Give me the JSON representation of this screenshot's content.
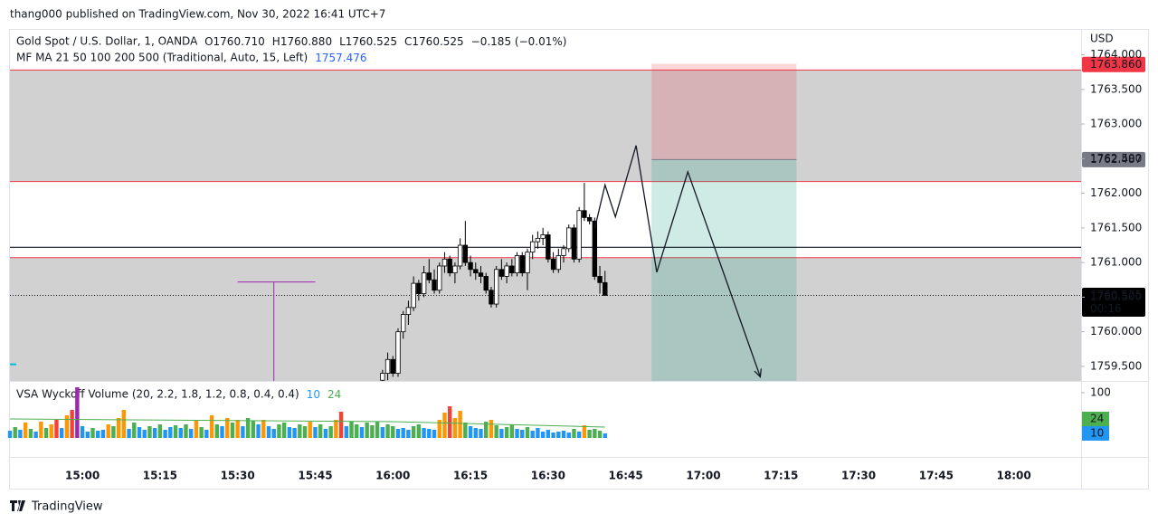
{
  "published": "thang000 published on TradingView.com, Nov 30, 2022 16:41 UTC+7",
  "brand": "TradingView",
  "chart_data": [
    {
      "type": "candlestick",
      "symbol": "Gold Spot / U.S. Dollar, 1, OANDA",
      "ohlc": [
        "O1760.710",
        "H1760.880",
        "L1760.525",
        "C1760.525"
      ],
      "change": "−0.185 (−0.01%)",
      "indicator": "MF MA 21 50 100 200 500 (Traditional, Auto, 15, Left)",
      "indicator_value": "1757.476",
      "indicator_color": "#2962ff",
      "currency": "USD",
      "x": [
        "15:58",
        "15:59",
        "16:00",
        "16:01",
        "16:02",
        "16:03",
        "16:04",
        "16:05",
        "16:06",
        "16:07",
        "16:08",
        "16:09",
        "16:10",
        "16:11",
        "16:12",
        "16:13",
        "16:14",
        "16:15",
        "16:16",
        "16:17",
        "16:18",
        "16:19",
        "16:20",
        "16:21",
        "16:22",
        "16:23",
        "16:24",
        "16:25",
        "16:26",
        "16:27",
        "16:28",
        "16:29",
        "16:30",
        "16:31",
        "16:32",
        "16:33",
        "16:34",
        "16:35",
        "16:36",
        "16:37",
        "16:38",
        "16:39",
        "16:40",
        "16:41"
      ],
      "open": [
        1759.3,
        1759.4,
        1759.6,
        1759.4,
        1760.0,
        1760.25,
        1760.35,
        1760.7,
        1760.55,
        1760.85,
        1760.75,
        1760.6,
        1760.95,
        1761.05,
        1760.85,
        1760.95,
        1761.25,
        1761.0,
        1760.9,
        1760.85,
        1760.8,
        1760.6,
        1760.4,
        1760.9,
        1760.8,
        1760.95,
        1760.85,
        1761.1,
        1760.85,
        1761.15,
        1761.3,
        1761.35,
        1761.4,
        1761.05,
        1760.9,
        1761.1,
        1761.2,
        1761.5,
        1761.05,
        1761.75,
        1761.65,
        1761.6,
        1760.8,
        1760.71
      ],
      "high": [
        1759.45,
        1759.7,
        1759.65,
        1760.05,
        1760.3,
        1760.45,
        1760.8,
        1760.75,
        1760.95,
        1761.05,
        1760.9,
        1761.0,
        1761.15,
        1761.1,
        1761.0,
        1761.35,
        1761.6,
        1761.1,
        1761.0,
        1760.95,
        1760.85,
        1760.65,
        1760.95,
        1761.05,
        1761.0,
        1761.05,
        1761.15,
        1761.15,
        1761.2,
        1761.4,
        1761.45,
        1761.5,
        1761.45,
        1761.15,
        1761.2,
        1761.25,
        1761.55,
        1761.55,
        1761.8,
        1762.15,
        1761.7,
        1761.65,
        1760.95,
        1760.88
      ],
      "low": [
        1759.25,
        1759.3,
        1759.35,
        1759.35,
        1759.9,
        1760.1,
        1760.3,
        1760.45,
        1760.5,
        1760.7,
        1760.55,
        1760.55,
        1760.85,
        1760.8,
        1760.7,
        1760.9,
        1760.95,
        1760.8,
        1760.75,
        1760.7,
        1760.55,
        1760.35,
        1760.35,
        1760.75,
        1760.7,
        1760.8,
        1760.8,
        1760.8,
        1760.6,
        1761.05,
        1761.2,
        1761.25,
        1761.0,
        1760.85,
        1760.85,
        1761.0,
        1761.15,
        1761.0,
        1761.0,
        1761.6,
        1761.55,
        1760.75,
        1760.55,
        1760.525
      ],
      "close": [
        1759.4,
        1759.6,
        1759.4,
        1760.0,
        1760.25,
        1760.35,
        1760.7,
        1760.55,
        1760.85,
        1760.75,
        1760.6,
        1760.95,
        1761.05,
        1760.85,
        1760.95,
        1761.25,
        1761.0,
        1760.9,
        1760.85,
        1760.8,
        1760.6,
        1760.4,
        1760.9,
        1760.8,
        1760.95,
        1760.85,
        1761.1,
        1760.85,
        1761.15,
        1761.3,
        1761.35,
        1761.4,
        1761.05,
        1760.9,
        1761.1,
        1761.2,
        1761.5,
        1761.05,
        1761.75,
        1761.65,
        1761.6,
        1760.8,
        1760.71,
        1760.525
      ],
      "up_color": "#ffffff",
      "down_color": "#000000",
      "outline_color": "#000000",
      "xlim": [
        "14:46",
        "18:13"
      ],
      "xticks": [
        "15:00",
        "15:15",
        "15:30",
        "15:45",
        "16:00",
        "16:15",
        "16:30",
        "16:45",
        "17:00",
        "17:15",
        "17:30",
        "17:45",
        "18:00"
      ],
      "ylim": [
        1759.29,
        1764.36
      ],
      "yticks": [
        {
          "value": 1759.5,
          "label": "1759.500"
        },
        {
          "value": 1760,
          "label": "1760.000"
        },
        {
          "value": 1760.5,
          "label": "1760.500"
        },
        {
          "value": 1761,
          "label": "1761.000"
        },
        {
          "value": 1761.5,
          "label": "1761.500"
        },
        {
          "value": 1762,
          "label": "1762.000"
        },
        {
          "value": 1762.5,
          "label": "1762.500"
        },
        {
          "value": 1763,
          "label": "1763.000"
        },
        {
          "value": 1763.5,
          "label": "1763.500"
        },
        {
          "value": 1764,
          "label": "1764.000"
        }
      ],
      "zones": [
        {
          "top": 1763.78,
          "bottom": 1762.17
        },
        {
          "top": 1761.07
        }
      ],
      "zone_color": "#d1d1d1",
      "zone_border_color": "#f23645",
      "level": 1761.22,
      "level_color": "#131722",
      "purple_tool": {
        "price": 1760.72,
        "from": "15:30",
        "to": "15:45",
        "stem": "15:37",
        "color": "#9c27b0"
      },
      "marker": {
        "price": 1759.53,
        "color": "#00bcd4"
      },
      "position": {
        "from": "16:50",
        "to": "17:18",
        "stop": 1763.87,
        "entry": 1762.487,
        "stop_color": "#f23645",
        "target_color": "#089981"
      },
      "drawing": {
        "x": [
          "16:39",
          "16:41",
          "16:43",
          "16:47",
          "16:51",
          "16:57",
          "17:11"
        ],
        "y": [
          1761.49,
          1762.12,
          1761.66,
          1762.69,
          1760.86,
          1762.31,
          1759.35
        ],
        "color": "#131722"
      },
      "price_labels": [
        {
          "value": 1763.86,
          "label": "1763.860",
          "color": "#f23645"
        },
        {
          "value": 1762.487,
          "label": "1762.487",
          "color": "#787b86"
        },
        {
          "value": 1760.525,
          "label": "1760.525",
          "color": "#000000",
          "countdown": "00:16"
        }
      ]
    },
    {
      "type": "bar",
      "title": "VSA Wyckoff Volume (20, 2.2, 1.8, 1.2, 0.8, 0.4, 0.4)",
      "legend_values": [
        {
          "value": 10,
          "color": "#2196f3"
        },
        {
          "value": 24,
          "color": "#4caf50"
        }
      ],
      "x": [
        "14:46",
        "14:47",
        "14:48",
        "14:49",
        "14:50",
        "14:51",
        "14:52",
        "14:53",
        "14:54",
        "14:55",
        "14:56",
        "14:57",
        "14:58",
        "14:59",
        "15:00",
        "15:01",
        "15:02",
        "15:03",
        "15:04",
        "15:05",
        "15:06",
        "15:07",
        "15:08",
        "15:09",
        "15:10",
        "15:11",
        "15:12",
        "15:13",
        "15:14",
        "15:15",
        "15:16",
        "15:17",
        "15:18",
        "15:19",
        "15:20",
        "15:21",
        "15:22",
        "15:23",
        "15:24",
        "15:25",
        "15:26",
        "15:27",
        "15:28",
        "15:29",
        "15:30",
        "15:31",
        "15:32",
        "15:33",
        "15:34",
        "15:35",
        "15:36",
        "15:37",
        "15:38",
        "15:39",
        "15:40",
        "15:41",
        "15:42",
        "15:43",
        "15:44",
        "15:45",
        "15:46",
        "15:47",
        "15:48",
        "15:49",
        "15:50",
        "15:51",
        "15:52",
        "15:53",
        "15:54",
        "15:55",
        "15:56",
        "15:57",
        "15:58",
        "15:59",
        "16:00",
        "16:01",
        "16:02",
        "16:03",
        "16:04",
        "16:05",
        "16:06",
        "16:07",
        "16:08",
        "16:09",
        "16:10",
        "16:11",
        "16:12",
        "16:13",
        "16:14",
        "16:15",
        "16:16",
        "16:17",
        "16:18",
        "16:19",
        "16:20",
        "16:21",
        "16:22",
        "16:23",
        "16:24",
        "16:25",
        "16:26",
        "16:27",
        "16:28",
        "16:29",
        "16:30",
        "16:31",
        "16:32",
        "16:33",
        "16:34",
        "16:35",
        "16:36",
        "16:37",
        "16:38",
        "16:39",
        "16:40",
        "16:41"
      ],
      "values": [
        16,
        24,
        18,
        34,
        20,
        14,
        36,
        22,
        30,
        40,
        22,
        50,
        62,
        112,
        26,
        14,
        22,
        16,
        18,
        30,
        26,
        44,
        62,
        20,
        34,
        24,
        18,
        26,
        22,
        30,
        18,
        24,
        28,
        22,
        30,
        20,
        40,
        24,
        18,
        50,
        30,
        26,
        44,
        34,
        40,
        26,
        44,
        38,
        30,
        40,
        26,
        20,
        30,
        34,
        24,
        22,
        30,
        26,
        36,
        24,
        30,
        20,
        26,
        40,
        58,
        26,
        36,
        30,
        24,
        34,
        28,
        36,
        24,
        30,
        26,
        20,
        22,
        18,
        26,
        30,
        22,
        20,
        18,
        40,
        56,
        70,
        44,
        60,
        34,
        26,
        22,
        20,
        36,
        40,
        28,
        20,
        24,
        30,
        20,
        18,
        24,
        16,
        22,
        14,
        18,
        12,
        14,
        16,
        12,
        20,
        14,
        28,
        18,
        20,
        16,
        10
      ],
      "colors": [
        "#2196f3",
        "#4caf50",
        "#2196f3",
        "#ff9800",
        "#4caf50",
        "#2196f3",
        "#ff9800",
        "#4caf50",
        "#ff9800",
        "#f44336",
        "#2196f3",
        "#ff9800",
        "#f44336",
        "#9c27b0",
        "#2196f3",
        "#2196f3",
        "#4caf50",
        "#2196f3",
        "#2196f3",
        "#ff9800",
        "#4caf50",
        "#ff9800",
        "#ff9800",
        "#2196f3",
        "#4caf50",
        "#2196f3",
        "#2196f3",
        "#4caf50",
        "#2196f3",
        "#4caf50",
        "#2196f3",
        "#2196f3",
        "#4caf50",
        "#2196f3",
        "#4caf50",
        "#2196f3",
        "#ff9800",
        "#4caf50",
        "#2196f3",
        "#ff9800",
        "#4caf50",
        "#2196f3",
        "#ff9800",
        "#4caf50",
        "#ff9800",
        "#2196f3",
        "#4caf50",
        "#4caf50",
        "#2196f3",
        "#ff9800",
        "#2196f3",
        "#2196f3",
        "#4caf50",
        "#4caf50",
        "#2196f3",
        "#2196f3",
        "#4caf50",
        "#4caf50",
        "#ff9800",
        "#2196f3",
        "#4caf50",
        "#2196f3",
        "#4caf50",
        "#ff9800",
        "#f44336",
        "#2196f3",
        "#4caf50",
        "#4caf50",
        "#2196f3",
        "#4caf50",
        "#4caf50",
        "#4caf50",
        "#2196f3",
        "#4caf50",
        "#4caf50",
        "#2196f3",
        "#2196f3",
        "#2196f3",
        "#4caf50",
        "#4caf50",
        "#2196f3",
        "#2196f3",
        "#2196f3",
        "#ff9800",
        "#ff9800",
        "#f44336",
        "#ff9800",
        "#ff9800",
        "#4caf50",
        "#2196f3",
        "#2196f3",
        "#2196f3",
        "#4caf50",
        "#ff9800",
        "#4caf50",
        "#2196f3",
        "#4caf50",
        "#4caf50",
        "#2196f3",
        "#2196f3",
        "#4caf50",
        "#2196f3",
        "#2196f3",
        "#2196f3",
        "#2196f3",
        "#2196f3",
        "#2196f3",
        "#2196f3",
        "#2196f3",
        "#4caf50",
        "#2196f3",
        "#ff9800",
        "#4caf50",
        "#4caf50",
        "#4caf50",
        "#2196f3"
      ],
      "ma": {
        "x": [
          "14:46",
          "16:00",
          "16:41"
        ],
        "values": [
          42,
          36,
          24
        ],
        "color": "#4caf50"
      },
      "ylim": [
        0,
        126
      ],
      "yticks": [
        100
      ]
    }
  ]
}
